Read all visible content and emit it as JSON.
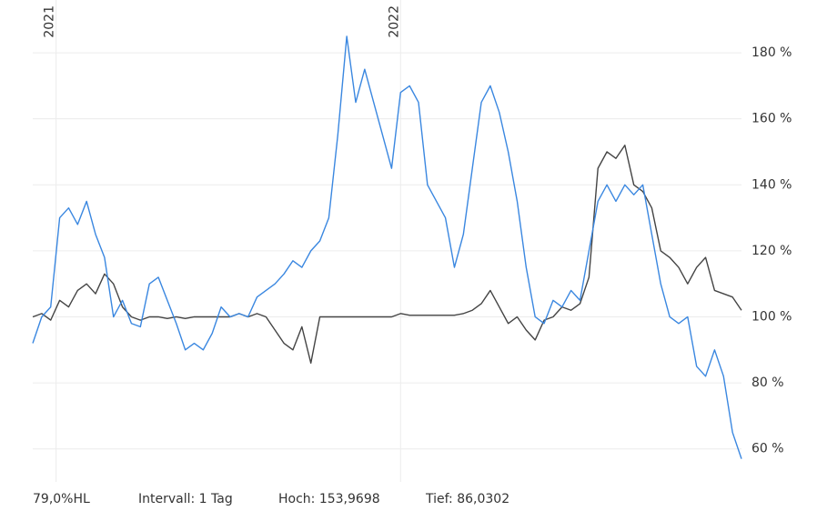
{
  "chart_data": {
    "type": "line",
    "xlim": [
      0,
      79
    ],
    "xticks": [
      {
        "value": 2.6,
        "label": "2021"
      },
      {
        "value": 41,
        "label": "2022"
      }
    ],
    "ylim": [
      50,
      196
    ],
    "yticks": [
      {
        "value": 60,
        "label": "60 %"
      },
      {
        "value": 80,
        "label": "80 %"
      },
      {
        "value": 100,
        "label": "100 %"
      },
      {
        "value": 120,
        "label": "120 %"
      },
      {
        "value": 140,
        "label": "140 %"
      },
      {
        "value": 160,
        "label": "160 %"
      },
      {
        "value": 180,
        "label": "180 %"
      }
    ],
    "grid": true,
    "series": [
      {
        "color": "#3a87e0",
        "values": [
          92,
          100,
          103,
          130,
          133,
          128,
          135,
          125,
          118,
          100,
          105,
          98,
          97,
          110,
          112,
          105,
          98,
          90,
          92,
          90,
          95,
          103,
          100,
          101,
          100,
          106,
          108,
          110,
          113,
          117,
          115,
          120,
          123,
          130,
          155,
          185,
          165,
          175,
          165,
          155,
          145,
          168,
          170,
          165,
          140,
          135,
          130,
          115,
          125,
          145,
          165,
          170,
          162,
          150,
          135,
          115,
          100,
          98,
          105,
          103,
          108,
          105,
          120,
          135,
          140,
          135,
          140,
          137,
          140,
          125,
          110,
          100,
          98,
          100,
          85,
          82,
          90,
          82,
          65,
          57
        ]
      },
      {
        "color": "#444444",
        "values": [
          100,
          101,
          99,
          105,
          103,
          108,
          110,
          107,
          113,
          110,
          103,
          100,
          99,
          100,
          100,
          99.5,
          100,
          99.5,
          100,
          100,
          100,
          100,
          100,
          101,
          100,
          101,
          100,
          96,
          92,
          90,
          97,
          86,
          100,
          100,
          100,
          100,
          100,
          100,
          100,
          100,
          100,
          101,
          100.5,
          100.5,
          100.5,
          100.5,
          100.5,
          100.5,
          101,
          102,
          104,
          108,
          103,
          98,
          100,
          96,
          93,
          99,
          100,
          103,
          102,
          104,
          112,
          145,
          150,
          148,
          152,
          140,
          138,
          133,
          120,
          118,
          115,
          110,
          115,
          118,
          108,
          107,
          106,
          102
        ]
      }
    ],
    "footer": [
      "79,0%HL",
      "Intervall: 1 Tag",
      "Hoch: 153,9698",
      "Tief: 86,0302"
    ]
  }
}
